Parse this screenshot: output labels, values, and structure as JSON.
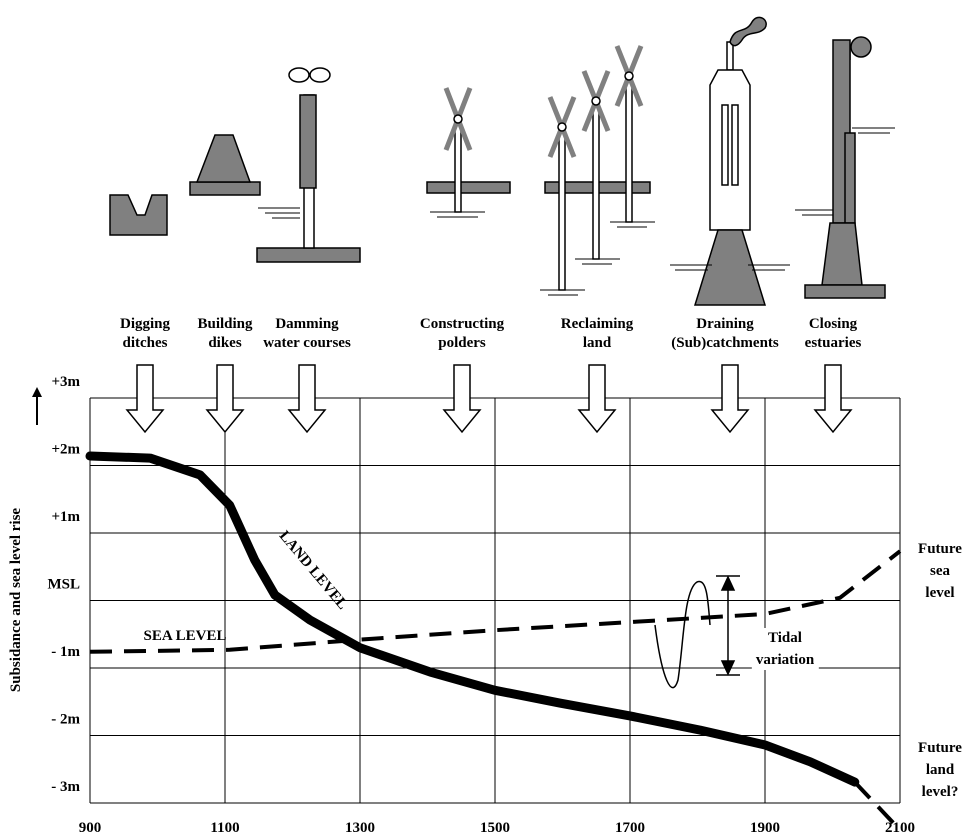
{
  "chart_data": {
    "type": "line",
    "y_label": "Subsidance and sea level rise",
    "xlim": [
      900,
      2100
    ],
    "xticks": [
      900,
      1100,
      1300,
      1500,
      1700,
      1900,
      2100
    ],
    "ylim": [
      -3,
      3
    ],
    "yticks": [
      {
        "value": 3,
        "label": "+3m"
      },
      {
        "value": 2,
        "label": "+2m"
      },
      {
        "value": 1,
        "label": "+1m"
      },
      {
        "value": 0,
        "label": "MSL"
      },
      {
        "value": -1,
        "label": "- 1m"
      },
      {
        "value": -2,
        "label": "- 2m"
      },
      {
        "value": -3,
        "label": "- 3m"
      }
    ],
    "grid": true,
    "series": [
      {
        "name": "LAND LEVEL",
        "color": "#000000",
        "dashed": false,
        "x": [
          900,
          989,
          1063,
          1107,
          1144,
          1174,
          1226,
          1300,
          1404,
          1500,
          1596,
          1700,
          1804,
          1900,
          1967,
          2033
        ],
        "values": [
          2.14,
          2.11,
          1.86,
          1.41,
          0.6,
          0.08,
          -0.29,
          -0.7,
          -1.06,
          -1.33,
          -1.52,
          -1.71,
          -1.92,
          -2.14,
          -2.39,
          -2.69
        ]
      },
      {
        "name": "SEA LEVEL",
        "color": "#000000",
        "dashed": true,
        "x": [
          900,
          1107,
          1300,
          1500,
          1700,
          1900,
          2011,
          2100
        ],
        "values": [
          -0.76,
          -0.73,
          -0.58,
          -0.44,
          -0.32,
          -0.2,
          0.04,
          0.73
        ]
      },
      {
        "name": "Future land level?",
        "color": "#000000",
        "dashed": true,
        "x": [
          2033,
          2100
        ],
        "values": [
          -2.69,
          -3.4
        ]
      }
    ],
    "annotations": [
      "Future sea level",
      "Tidal variation"
    ],
    "activities": [
      [
        "Digging",
        "ditches"
      ],
      [
        "Building",
        "dikes"
      ],
      [
        "Damming",
        "water courses"
      ],
      [
        "Constructing",
        "polders"
      ],
      [
        "Reclaiming",
        "land"
      ],
      [
        "Draining",
        "(Sub)catchments"
      ],
      [
        "Closing",
        "estuaries"
      ]
    ]
  }
}
